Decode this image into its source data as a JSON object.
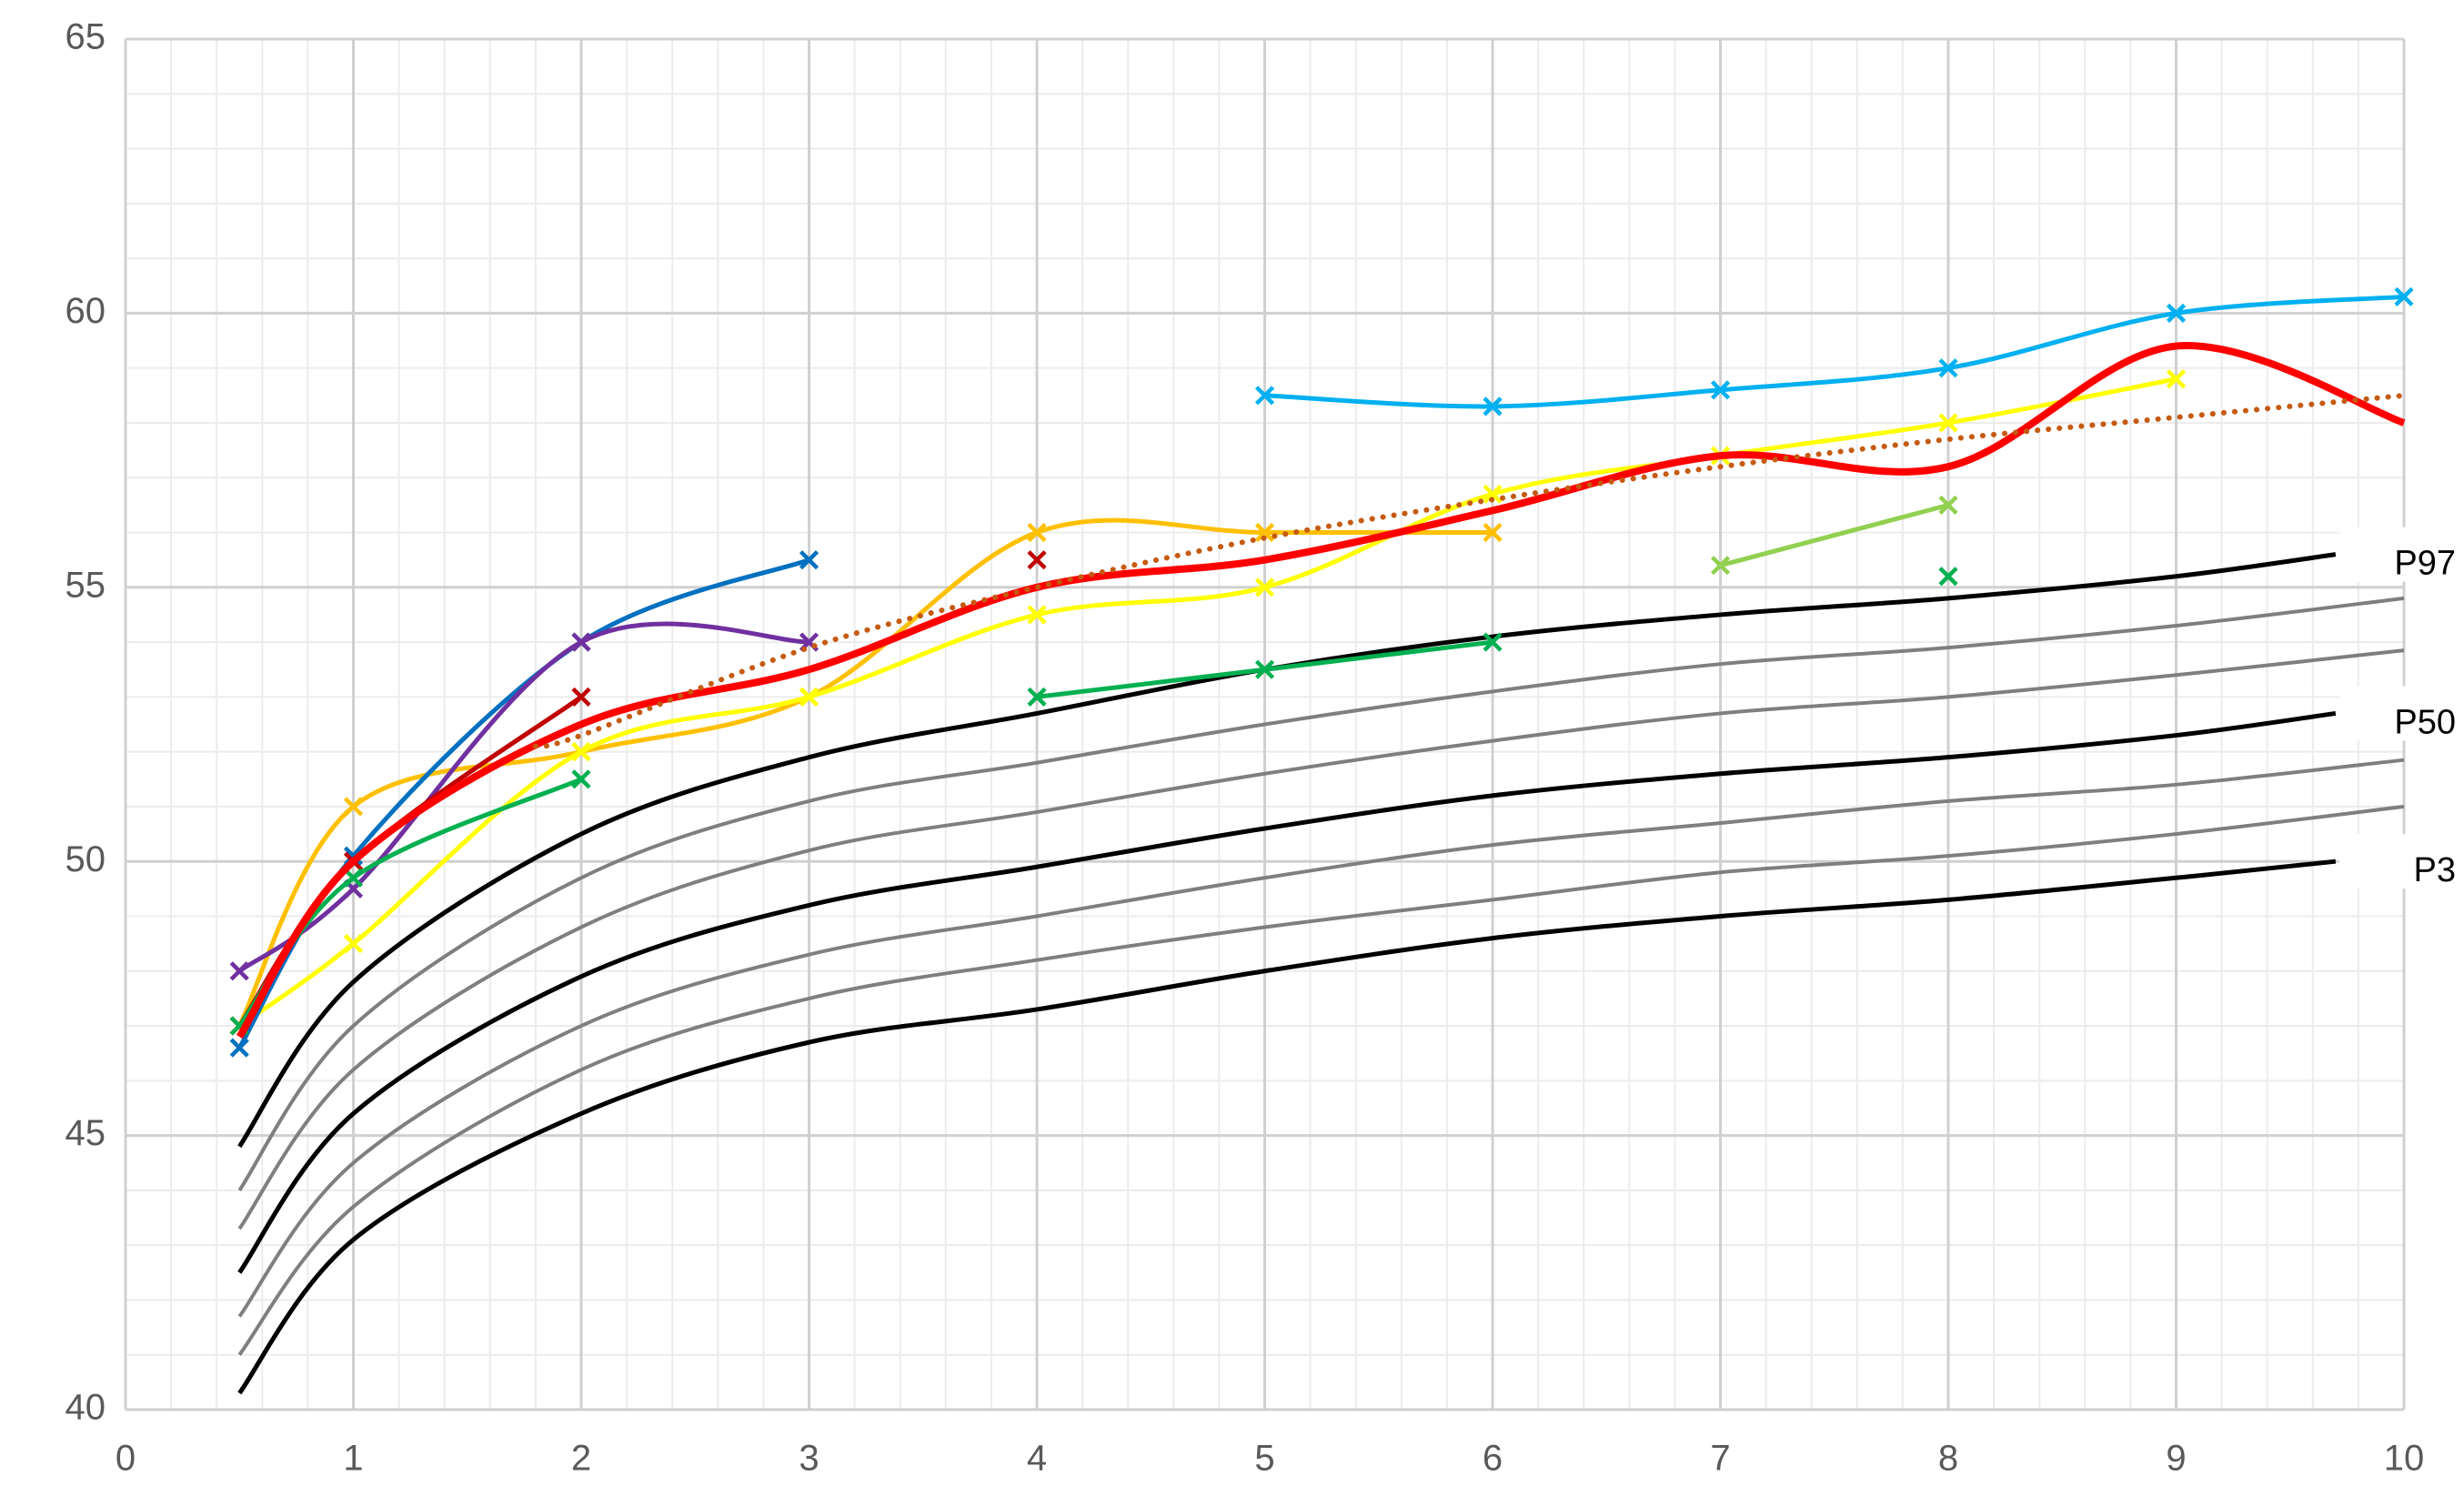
{
  "chart_data": {
    "type": "line",
    "xlim": [
      0,
      10
    ],
    "xticks": [
      0,
      1,
      2,
      3,
      4,
      5,
      6,
      7,
      8,
      9,
      10
    ],
    "ylim": [
      40,
      65
    ],
    "yticks": [
      40,
      45,
      50,
      55,
      60,
      65
    ],
    "grid": true,
    "xminor_step": 0.2,
    "yminor_step": 1,
    "series": [
      {
        "name": "P3",
        "color": "#000000",
        "width": 5,
        "marker": "none",
        "x": [
          0.5,
          1,
          2,
          3,
          4,
          5,
          6,
          7,
          8,
          9,
          9.7
        ],
        "values": [
          40.3,
          43.1,
          45.4,
          46.7,
          47.3,
          48.0,
          48.6,
          49.0,
          49.3,
          49.7,
          50.0
        ]
      },
      {
        "color": "#7f7f7f",
        "width": 4,
        "marker": "none",
        "x": [
          0.5,
          1,
          2,
          3,
          4,
          5,
          6,
          7,
          8,
          9,
          10
        ],
        "values": [
          41.0,
          43.7,
          46.2,
          47.5,
          48.2,
          48.8,
          49.3,
          49.8,
          50.1,
          50.5,
          51.0
        ]
      },
      {
        "color": "#7f7f7f",
        "width": 4,
        "marker": "none",
        "x": [
          0.5,
          1,
          2,
          3,
          4,
          5,
          6,
          7,
          8,
          9,
          10
        ],
        "values": [
          41.7,
          44.5,
          47.0,
          48.3,
          49.0,
          49.7,
          50.3,
          50.7,
          51.1,
          51.4,
          51.85
        ]
      },
      {
        "name": "P50",
        "color": "#000000",
        "width": 5,
        "marker": "none",
        "x": [
          0.5,
          1,
          2,
          3,
          4,
          5,
          6,
          7,
          8,
          9,
          9.7
        ],
        "values": [
          42.5,
          45.4,
          47.9,
          49.2,
          49.9,
          50.6,
          51.2,
          51.6,
          51.9,
          52.3,
          52.7
        ]
      },
      {
        "color": "#7f7f7f",
        "width": 4,
        "marker": "none",
        "x": [
          0.5,
          1,
          2,
          3,
          4,
          5,
          6,
          7,
          8,
          9,
          10
        ],
        "values": [
          43.3,
          46.2,
          48.8,
          50.2,
          50.9,
          51.6,
          52.2,
          52.7,
          53.0,
          53.4,
          53.85
        ]
      },
      {
        "color": "#7f7f7f",
        "width": 4,
        "marker": "none",
        "x": [
          0.5,
          1,
          2,
          3,
          4,
          5,
          6,
          7,
          8,
          9,
          10
        ],
        "values": [
          44.0,
          47.0,
          49.7,
          51.1,
          51.8,
          52.5,
          53.1,
          53.6,
          53.9,
          54.3,
          54.8
        ]
      },
      {
        "name": "P97",
        "color": "#000000",
        "width": 5,
        "marker": "none",
        "x": [
          0.5,
          1,
          2,
          3,
          4,
          5,
          6,
          7,
          8,
          9,
          9.7
        ],
        "values": [
          44.8,
          47.8,
          50.5,
          51.9,
          52.7,
          53.5,
          54.1,
          54.5,
          54.8,
          55.2,
          55.6
        ]
      },
      {
        "color": "#00b0f0",
        "width": 5,
        "marker": "x",
        "x": [
          5,
          6,
          7,
          8,
          9,
          10
        ],
        "values": [
          58.5,
          58.3,
          58.6,
          59.0,
          60.0,
          60.3
        ]
      },
      {
        "color": "#ffc000",
        "width": 5,
        "marker": "x",
        "x": [
          0.5,
          1,
          2,
          3,
          4,
          5,
          6
        ],
        "values": [
          47.0,
          51.0,
          52.0,
          53.0,
          56.0,
          56.0,
          56.0
        ]
      },
      {
        "color": "#ffff00",
        "width": 5,
        "marker": "x",
        "x": [
          0.5,
          1,
          2,
          3,
          4,
          5,
          6,
          7,
          8,
          9
        ],
        "values": [
          47.0,
          48.5,
          52.0,
          53.0,
          54.5,
          55.0,
          56.7,
          57.4,
          58.0,
          58.8
        ]
      },
      {
        "color": "#0070c0",
        "width": 5,
        "marker": "x",
        "x": [
          0.5,
          1,
          2,
          3
        ],
        "values": [
          46.6,
          50.1,
          54.0,
          55.5
        ]
      },
      {
        "color": "#7030a0",
        "width": 5,
        "marker": "x",
        "x": [
          0.5,
          1,
          2,
          3
        ],
        "values": [
          48.0,
          49.5,
          54.0,
          54.0
        ]
      },
      {
        "color": "#c00000",
        "width": 5,
        "marker": "x",
        "x": [
          0.5,
          1,
          2,
          3,
          4
        ],
        "values": [
          47.0,
          50.0,
          53.0,
          null,
          55.5
        ]
      },
      {
        "color": "#00b050",
        "width": 5,
        "marker": "x",
        "x": [
          0.5,
          1,
          2,
          3,
          4,
          5,
          6,
          7,
          8
        ],
        "values": [
          47.0,
          49.7,
          51.5,
          null,
          53.0,
          53.5,
          54.0,
          null,
          55.2
        ]
      },
      {
        "color": "#92d050",
        "width": 5,
        "marker": "x",
        "x": [
          7,
          8
        ],
        "values": [
          55.4,
          56.5
        ]
      },
      {
        "color": "#ff0000",
        "width": 8,
        "marker": "none",
        "x": [
          0.5,
          1,
          2,
          3,
          4,
          5,
          6,
          7,
          8,
          9,
          10
        ],
        "values": [
          46.8,
          50.0,
          52.5,
          53.5,
          55.0,
          55.5,
          56.4,
          57.4,
          57.2,
          59.4,
          58.0
        ]
      },
      {
        "color": "#c55a11",
        "width": 6,
        "marker": "none",
        "dash": "dotted",
        "x": [
          1.8,
          2,
          3,
          4,
          5,
          6,
          7,
          8,
          9,
          10
        ],
        "values": [
          52.1,
          52.3,
          53.9,
          55.0,
          55.9,
          56.6,
          57.2,
          57.7,
          58.1,
          58.5
        ]
      }
    ]
  }
}
